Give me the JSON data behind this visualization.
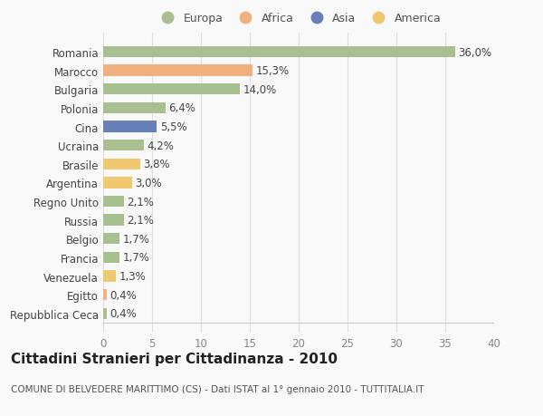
{
  "categories": [
    "Romania",
    "Marocco",
    "Bulgaria",
    "Polonia",
    "Cina",
    "Ucraina",
    "Brasile",
    "Argentina",
    "Regno Unito",
    "Russia",
    "Belgio",
    "Francia",
    "Venezuela",
    "Egitto",
    "Repubblica Ceca"
  ],
  "values": [
    36.0,
    15.3,
    14.0,
    6.4,
    5.5,
    4.2,
    3.8,
    3.0,
    2.1,
    2.1,
    1.7,
    1.7,
    1.3,
    0.4,
    0.4
  ],
  "labels": [
    "36,0%",
    "15,3%",
    "14,0%",
    "6,4%",
    "5,5%",
    "4,2%",
    "3,8%",
    "3,0%",
    "2,1%",
    "2,1%",
    "1,7%",
    "1,7%",
    "1,3%",
    "0,4%",
    "0,4%"
  ],
  "colors": [
    "#a8c090",
    "#f0b080",
    "#a8c090",
    "#a8c090",
    "#6880b8",
    "#a8c090",
    "#f0c870",
    "#f0c870",
    "#a8c090",
    "#a8c090",
    "#a8c090",
    "#a8c090",
    "#f0c870",
    "#f0b080",
    "#a8c090"
  ],
  "legend_labels": [
    "Europa",
    "Africa",
    "Asia",
    "America"
  ],
  "legend_colors": [
    "#a8c090",
    "#f0b080",
    "#6880b8",
    "#f0c870"
  ],
  "title": "Cittadini Stranieri per Cittadinanza - 2010",
  "subtitle": "COMUNE DI BELVEDERE MARITTIMO (CS) - Dati ISTAT al 1° gennaio 2010 - TUTTITALIA.IT",
  "xlim": [
    0,
    40
  ],
  "xticks": [
    0,
    5,
    10,
    15,
    20,
    25,
    30,
    35,
    40
  ],
  "background_color": "#f9f9f9",
  "grid_color": "#e0e0e0",
  "bar_height": 0.6,
  "label_fontsize": 8.5,
  "tick_fontsize": 8.5,
  "title_fontsize": 11,
  "subtitle_fontsize": 7.5
}
